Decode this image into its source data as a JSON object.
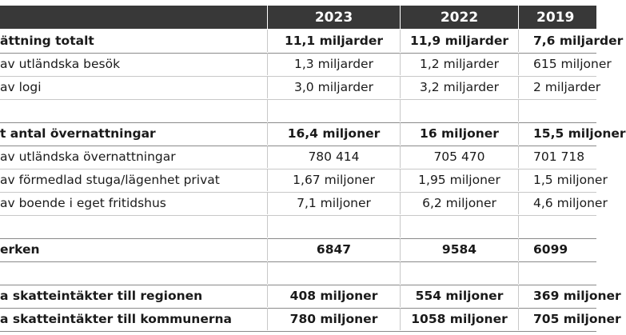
{
  "header": {
    "label": "",
    "y2023": "2023",
    "y2022": "2022",
    "y2019": "2019"
  },
  "rows": [
    {
      "label": "ättning totalt",
      "v2023": "11,1 miljarder",
      "v2022": "11,9 miljarder",
      "v2019": "7,6 miljarder",
      "bold": true
    },
    {
      "label": "av utländska besök",
      "v2023": "1,3 miljarder",
      "v2022": "1,2 miljarder",
      "v2019": "615 miljoner",
      "bold": false
    },
    {
      "label": "av logi",
      "v2023": "3,0 miljarder",
      "v2022": "3,2 miljarder",
      "v2019": "2 miljarder",
      "bold": false
    },
    {
      "label": "",
      "v2023": "",
      "v2022": "",
      "v2019": "",
      "bold": false
    },
    {
      "label": "t antal övernattningar",
      "v2023": "16,4 miljoner",
      "v2022": "16 miljoner",
      "v2019": "15,5 miljoner",
      "bold": true
    },
    {
      "label": "av utländska övernattningar",
      "v2023": "780 414",
      "v2022": "705 470",
      "v2019": "701 718",
      "bold": false
    },
    {
      "label": "av förmedlad stuga/lägenhet privat",
      "v2023": "1,67 miljoner",
      "v2022": "1,95 miljoner",
      "v2019": "1,5 miljoner",
      "bold": false
    },
    {
      "label": "av boende i eget fritidshus",
      "v2023": "7,1 miljoner",
      "v2022": "6,2 miljoner",
      "v2019": "4,6 miljoner",
      "bold": false
    },
    {
      "label": "",
      "v2023": "",
      "v2022": "",
      "v2019": "",
      "bold": false
    },
    {
      "label": "erken",
      "v2023": "6847",
      "v2022": "9584",
      "v2019": "6099",
      "bold": true
    },
    {
      "label": "",
      "v2023": "",
      "v2022": "",
      "v2019": "",
      "bold": false
    },
    {
      "label": "a skatteintäkter till regionen",
      "v2023": "408 miljoner",
      "v2022": "554 miljoner",
      "v2019": "369 miljoner",
      "bold": true
    },
    {
      "label": "a skatteintäkter till kommunerna",
      "v2023": "780 miljoner",
      "v2022": "1058 miljoner",
      "v2019": "705 miljoner",
      "bold": true
    }
  ]
}
